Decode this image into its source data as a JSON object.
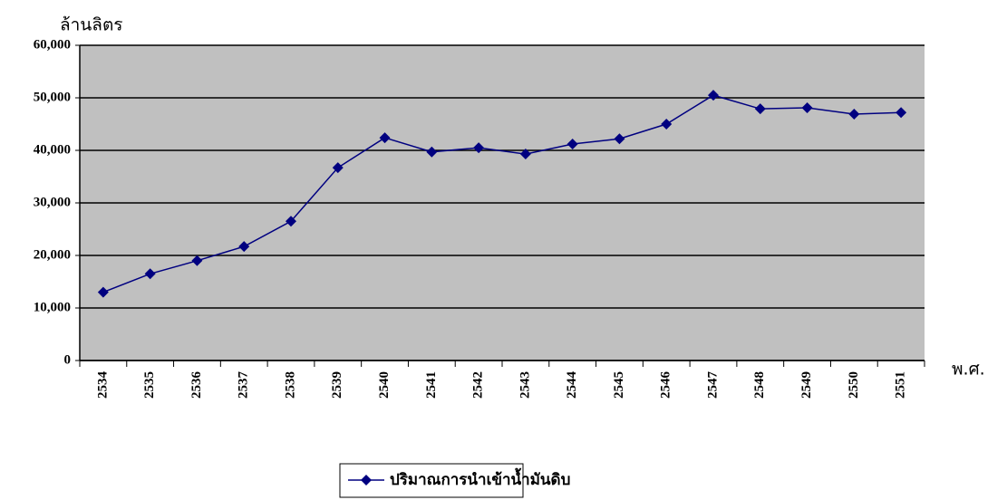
{
  "chart_data": {
    "type": "line",
    "y_axis_label": "ล้านลิตร",
    "x_axis_label": "พ.ศ.",
    "categories": [
      "2534",
      "2535",
      "2536",
      "2537",
      "2538",
      "2539",
      "2540",
      "2541",
      "2542",
      "2543",
      "2544",
      "2545",
      "2546",
      "2547",
      "2548",
      "2549",
      "2550",
      "2551"
    ],
    "series": [
      {
        "name": "ปริมาณการนำเข้าน้ำมันดิบ",
        "color": "#000080",
        "values": [
          13000,
          16500,
          19000,
          21700,
          26500,
          36700,
          42400,
          39700,
          40500,
          39300,
          41200,
          42200,
          45000,
          50500,
          47900,
          48100,
          46900,
          47200
        ]
      }
    ],
    "ylim": [
      0,
      60000
    ],
    "yticks": [
      0,
      {
        "value": 10000,
        "label": "10,000"
      },
      {
        "value": 20000,
        "label": "20,000"
      },
      {
        "value": 30000,
        "label": "30,000"
      },
      {
        "value": 40000,
        "label": "40,000"
      },
      {
        "value": 50000,
        "label": "50,000"
      },
      {
        "value": 60000,
        "label": "60,000"
      }
    ],
    "grid": true,
    "plot_background": "#c0c0c0",
    "legend": "bottom"
  }
}
